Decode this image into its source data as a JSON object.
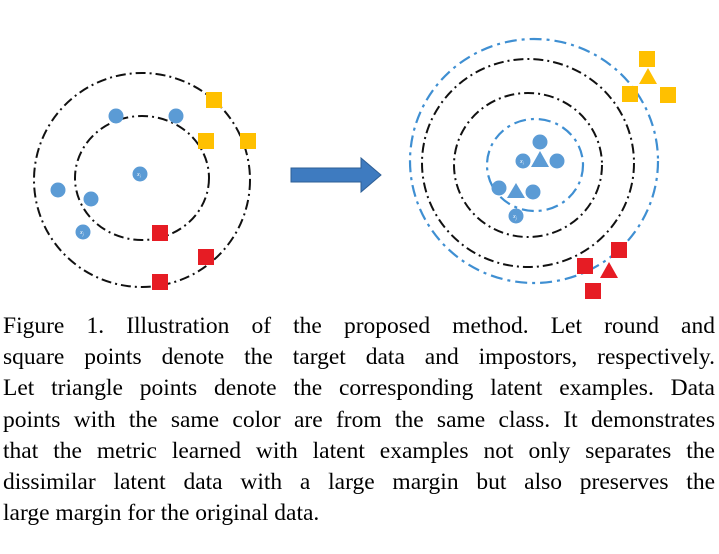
{
  "figure": {
    "colors": {
      "blue": "#5b9bd5",
      "yellow": "#ffc000",
      "red": "#e61c24",
      "ring_black": "#111111",
      "ring_blue": "#3f8fd2",
      "arrow": "#3e7bc0"
    },
    "left_panel": {
      "center_label": "x",
      "center_label_sub": "i",
      "side_label": "x",
      "side_label_sub": "j"
    },
    "right_panel": {
      "center_label": "x",
      "center_label_sub": "i",
      "side_label": "x",
      "side_label_sub": "j"
    }
  },
  "caption": {
    "lines": [
      "Figure 1. Illustration of the proposed method.  Let round and",
      "square points denote the target data and impostors, respectively.",
      "Let triangle points denote the corresponding latent examples. Data",
      "points with the same color are from the same class. It demonstrates",
      "that the metric learned with latent examples not only separates the",
      "dissimilar latent data with a large margin but also preserves the",
      "large margin for the original data."
    ]
  }
}
